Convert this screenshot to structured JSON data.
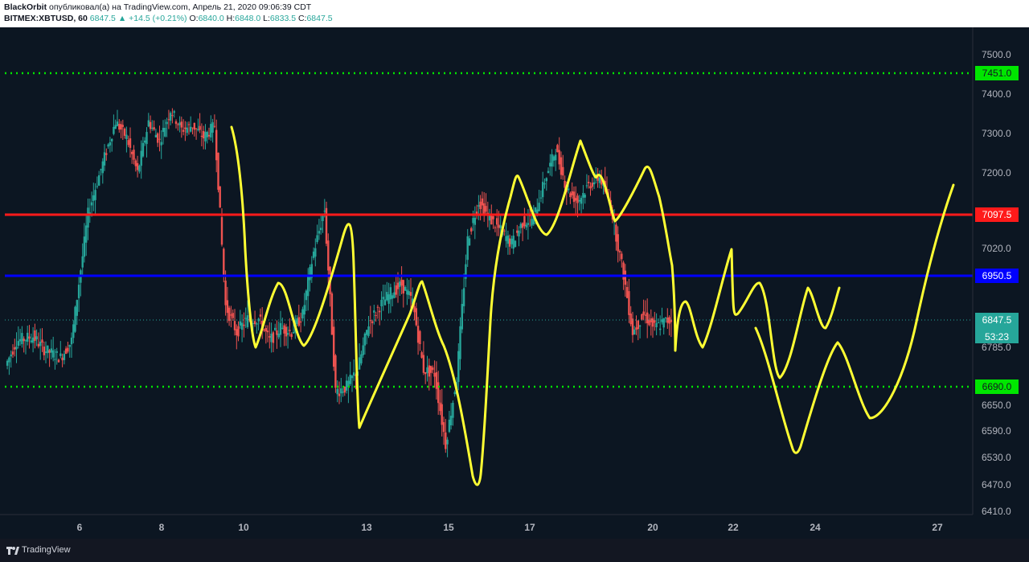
{
  "header": {
    "author": "BlackOrbit",
    "published_text": "опубликовал(а) на TradingView.com, Апрель 21, 2020 09:06:39 CDT",
    "symbol": "BITMEX:XBTUSD, 60",
    "last": "6847.5",
    "change_icon": "triangle-up-icon",
    "change": "+14.5 (+0.21%)",
    "o_label": "O:",
    "o_value": "6840.0",
    "h_label": "H:",
    "h_value": "6848.0",
    "l_label": "L:",
    "l_value": "6833.5",
    "c_label": "C:",
    "c_value": "6847.5"
  },
  "footer": {
    "brand": "TradingView",
    "logo_icon": "tradingview-logo-icon"
  },
  "colors": {
    "background": "#131722",
    "green_line": "#00e600",
    "red_line": "#ff1a1a",
    "blue_line": "#0000ff",
    "drawing": "#ffff33",
    "candle_up": "#26a69a",
    "candle_down": "#ef5350"
  },
  "chart_data": {
    "type": "candlestick",
    "title": "",
    "price_axis": {
      "ticks": [
        "7500.0",
        "7400.0",
        "7300.0",
        "7200.0",
        "7020.0",
        "6785.0",
        "6650.0",
        "6590.0",
        "6530.0",
        "6470.0",
        "6410.0"
      ],
      "tick_values": [
        7500,
        7400,
        7300,
        7200,
        7020,
        6785,
        6650,
        6590,
        6530,
        6470,
        6410
      ]
    },
    "time_axis": {
      "ticks": [
        "6",
        "8",
        "10",
        "13",
        "15",
        "17",
        "20",
        "22",
        "24",
        "27"
      ]
    },
    "horizontal_lines": [
      {
        "price": 7451.0,
        "label": "7451.0",
        "style": "dotted",
        "color": "#00e600"
      },
      {
        "price": 7097.5,
        "label": "7097.5",
        "style": "solid",
        "color": "#ff1a1a"
      },
      {
        "price": 6950.5,
        "label": "6950.5",
        "style": "solid",
        "color": "#0000ff"
      },
      {
        "price": 6690.0,
        "label": "6690.0",
        "style": "dotted",
        "color": "#00e600"
      }
    ],
    "last_price": {
      "price": 6847.5,
      "label": "6847.5",
      "countdown": "53:23"
    },
    "price_path": [
      {
        "x": 0,
        "y": 6740
      },
      {
        "x": 2,
        "y": 6800
      },
      {
        "x": 5,
        "y": 6810
      },
      {
        "x": 7,
        "y": 6780
      },
      {
        "x": 10,
        "y": 6760
      },
      {
        "x": 12,
        "y": 6800
      },
      {
        "x": 15,
        "y": 7100
      },
      {
        "x": 18,
        "y": 7240
      },
      {
        "x": 20,
        "y": 7330
      },
      {
        "x": 22,
        "y": 7290
      },
      {
        "x": 24,
        "y": 7200
      },
      {
        "x": 26,
        "y": 7330
      },
      {
        "x": 28,
        "y": 7280
      },
      {
        "x": 30,
        "y": 7360
      },
      {
        "x": 32,
        "y": 7310
      },
      {
        "x": 34,
        "y": 7320
      },
      {
        "x": 36,
        "y": 7290
      },
      {
        "x": 38,
        "y": 7320
      },
      {
        "x": 40,
        "y": 6880
      },
      {
        "x": 42,
        "y": 6820
      },
      {
        "x": 44,
        "y": 6850
      },
      {
        "x": 46,
        "y": 6850
      },
      {
        "x": 48,
        "y": 6800
      },
      {
        "x": 50,
        "y": 6830
      },
      {
        "x": 52,
        "y": 6820
      },
      {
        "x": 54,
        "y": 6860
      },
      {
        "x": 56,
        "y": 7010
      },
      {
        "x": 58,
        "y": 7110
      },
      {
        "x": 60,
        "y": 6680
      },
      {
        "x": 62,
        "y": 6690
      },
      {
        "x": 64,
        "y": 6730
      },
      {
        "x": 66,
        "y": 6840
      },
      {
        "x": 68,
        "y": 6880
      },
      {
        "x": 70,
        "y": 6910
      },
      {
        "x": 72,
        "y": 6930
      },
      {
        "x": 74,
        "y": 6890
      },
      {
        "x": 76,
        "y": 6730
      },
      {
        "x": 78,
        "y": 6720
      },
      {
        "x": 80,
        "y": 6560
      },
      {
        "x": 82,
        "y": 6710
      },
      {
        "x": 84,
        "y": 7040
      },
      {
        "x": 86,
        "y": 7130
      },
      {
        "x": 88,
        "y": 7090
      },
      {
        "x": 90,
        "y": 7060
      },
      {
        "x": 92,
        "y": 7030
      },
      {
        "x": 94,
        "y": 7080
      },
      {
        "x": 96,
        "y": 7090
      },
      {
        "x": 98,
        "y": 7180
      },
      {
        "x": 100,
        "y": 7260
      },
      {
        "x": 102,
        "y": 7160
      },
      {
        "x": 104,
        "y": 7130
      },
      {
        "x": 106,
        "y": 7170
      },
      {
        "x": 108,
        "y": 7190
      },
      {
        "x": 110,
        "y": 7120
      },
      {
        "x": 112,
        "y": 6980
      },
      {
        "x": 114,
        "y": 6820
      },
      {
        "x": 116,
        "y": 6860
      },
      {
        "x": 118,
        "y": 6830
      },
      {
        "x": 120,
        "y": 6845
      },
      {
        "x": 121,
        "y": 6847.5
      }
    ]
  }
}
